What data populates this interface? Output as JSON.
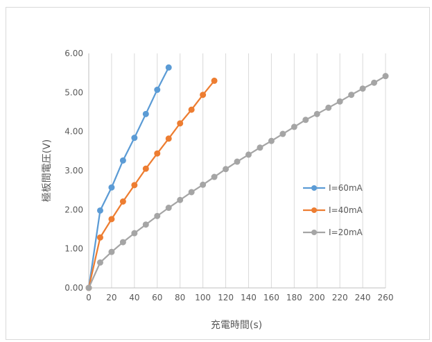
{
  "chart_data": {
    "type": "line",
    "title": "",
    "xlabel": "充電時間(s)",
    "ylabel": "極板間電圧(V)",
    "xlim": [
      0,
      260
    ],
    "ylim": [
      0,
      6
    ],
    "x_ticks": [
      "0",
      "20",
      "40",
      "60",
      "80",
      "100",
      "120",
      "140",
      "160",
      "180",
      "200",
      "220",
      "240",
      "260"
    ],
    "y_ticks": [
      "0.00",
      "1.00",
      "2.00",
      "3.00",
      "4.00",
      "5.00",
      "6.00"
    ],
    "grid": "vertical",
    "legend_position": "right",
    "series": [
      {
        "name": "I=60mA",
        "color": "#5b9bd5",
        "x": [
          0,
          10,
          20,
          30,
          40,
          50,
          60,
          70
        ],
        "y": [
          0.0,
          1.98,
          2.57,
          3.26,
          3.84,
          4.45,
          5.07,
          5.64
        ]
      },
      {
        "name": "I=40mA",
        "color": "#ed7d31",
        "x": [
          0,
          10,
          20,
          30,
          40,
          50,
          60,
          70,
          80,
          90,
          100,
          110
        ],
        "y": [
          0.0,
          1.29,
          1.76,
          2.21,
          2.63,
          3.05,
          3.44,
          3.82,
          4.21,
          4.56,
          4.94,
          5.3
        ]
      },
      {
        "name": "I=20mA",
        "color": "#a5a5a5",
        "x": [
          0,
          10,
          20,
          30,
          40,
          50,
          60,
          70,
          80,
          90,
          100,
          110,
          120,
          130,
          140,
          150,
          160,
          170,
          180,
          190,
          200,
          210,
          220,
          230,
          240,
          250,
          260
        ],
        "y": [
          0.0,
          0.65,
          0.92,
          1.17,
          1.4,
          1.62,
          1.84,
          2.05,
          2.25,
          2.45,
          2.64,
          2.84,
          3.04,
          3.23,
          3.41,
          3.59,
          3.76,
          3.94,
          4.12,
          4.3,
          4.45,
          4.61,
          4.77,
          4.94,
          5.1,
          5.25,
          5.42
        ]
      }
    ]
  }
}
